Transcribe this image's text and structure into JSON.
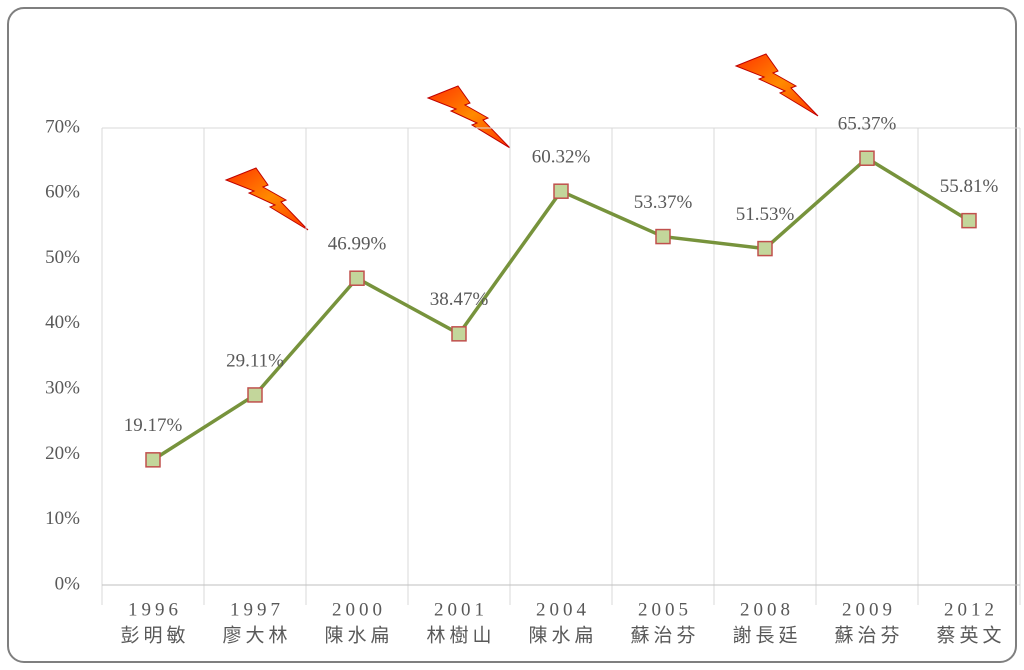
{
  "chart_data": {
    "type": "line",
    "categories": [
      [
        "1996",
        "彭明敏"
      ],
      [
        "1997",
        "廖大林"
      ],
      [
        "2000",
        "陳水扁"
      ],
      [
        "2001",
        "林樹山"
      ],
      [
        "2004",
        "陳水扁"
      ],
      [
        "2005",
        "蘇治芬"
      ],
      [
        "2008",
        "謝長廷"
      ],
      [
        "2009",
        "蘇治芬"
      ],
      [
        "2012",
        "蔡英文"
      ]
    ],
    "values": [
      19.17,
      29.11,
      46.99,
      38.47,
      60.32,
      53.37,
      51.53,
      65.37,
      55.81
    ],
    "value_labels": [
      "19.17%",
      "29.11%",
      "46.99%",
      "38.47%",
      "60.32%",
      "53.37%",
      "51.53%",
      "65.37%",
      "55.81%"
    ],
    "color": "#77933c",
    "marker_fill": "#c3d69b",
    "marker_edge": "#c0504d",
    "ylim": [
      0,
      70
    ],
    "yticks": [
      {
        "value": 0,
        "label": "0%"
      },
      {
        "value": 10,
        "label": "10%"
      },
      {
        "value": 20,
        "label": "20%"
      },
      {
        "value": 30,
        "label": "30%"
      },
      {
        "value": 40,
        "label": "40%"
      },
      {
        "value": 50,
        "label": "50%"
      },
      {
        "value": 60,
        "label": "60%"
      },
      {
        "value": 70,
        "label": "70%"
      }
    ],
    "grid": true
  }
}
